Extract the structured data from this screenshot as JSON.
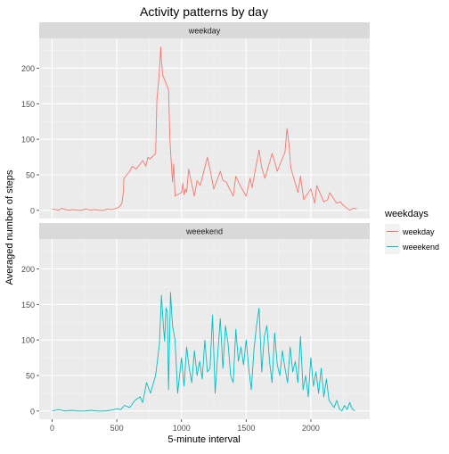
{
  "chart_data": {
    "type": "line",
    "title": "Activity patterns by day",
    "xlabel": "5-minute interval",
    "ylabel": "Averaged number of steps",
    "xlim": [
      -100,
      2455
    ],
    "ylim": [
      -11.5,
      242
    ],
    "x_ticks": [
      0,
      500,
      1000,
      1500,
      2000
    ],
    "y_ticks": [
      0,
      50,
      100,
      150,
      200
    ],
    "grid": true,
    "legend_position": "right",
    "legend_title": "weekdays",
    "panels": [
      {
        "strip_label": "weekday",
        "series_name": "weekday",
        "color": "#F8766D",
        "x": [
          0,
          25,
          50,
          75,
          100,
          130,
          160,
          200,
          230,
          260,
          300,
          330,
          360,
          400,
          430,
          460,
          500,
          520,
          540,
          550,
          555,
          600,
          620,
          650,
          700,
          725,
          740,
          755,
          800,
          810,
          825,
          830,
          835,
          840,
          845,
          855,
          900,
          910,
          920,
          930,
          940,
          950,
          1000,
          1010,
          1020,
          1030,
          1040,
          1055,
          1100,
          1120,
          1145,
          1200,
          1220,
          1250,
          1300,
          1320,
          1345,
          1400,
          1420,
          1450,
          1500,
          1530,
          1545,
          1600,
          1620,
          1645,
          1700,
          1715,
          1740,
          1800,
          1815,
          1830,
          1845,
          1900,
          1920,
          1945,
          2000,
          2030,
          2045,
          2100,
          2130,
          2145,
          2200,
          2230,
          2245,
          2300,
          2330,
          2355
        ],
        "y": [
          2,
          1,
          0,
          3,
          1,
          0,
          1,
          0,
          0,
          2,
          0,
          1,
          0,
          0,
          2,
          1,
          3,
          5,
          10,
          25,
          45,
          55,
          62,
          58,
          70,
          62,
          75,
          72,
          80,
          155,
          185,
          200,
          215,
          230,
          210,
          190,
          170,
          100,
          70,
          40,
          65,
          20,
          25,
          38,
          22,
          30,
          25,
          58,
          20,
          42,
          35,
          75,
          58,
          30,
          55,
          42,
          40,
          20,
          48,
          36,
          20,
          45,
          32,
          85,
          60,
          45,
          80,
          72,
          55,
          82,
          115,
          95,
          60,
          25,
          48,
          15,
          30,
          10,
          35,
          12,
          15,
          25,
          10,
          12,
          8,
          0,
          3,
          2
        ]
      },
      {
        "strip_label": "weeekend",
        "series_name": "weeekend",
        "color": "#00BFC4",
        "x": [
          0,
          50,
          100,
          150,
          200,
          250,
          300,
          350,
          400,
          450,
          500,
          530,
          560,
          600,
          640,
          680,
          700,
          730,
          760,
          800,
          830,
          845,
          860,
          870,
          880,
          890,
          900,
          915,
          930,
          950,
          970,
          1000,
          1020,
          1040,
          1060,
          1080,
          1100,
          1120,
          1140,
          1160,
          1180,
          1200,
          1220,
          1240,
          1260,
          1280,
          1300,
          1320,
          1340,
          1360,
          1380,
          1400,
          1420,
          1440,
          1460,
          1480,
          1500,
          1520,
          1540,
          1560,
          1580,
          1600,
          1620,
          1640,
          1660,
          1680,
          1700,
          1720,
          1740,
          1760,
          1780,
          1800,
          1820,
          1840,
          1860,
          1880,
          1900,
          1920,
          1940,
          1960,
          1980,
          2000,
          2020,
          2040,
          2060,
          2080,
          2100,
          2120,
          2140,
          2160,
          2180,
          2200,
          2220,
          2240,
          2260,
          2280,
          2300,
          2320,
          2340
        ],
        "y": [
          0,
          2,
          0,
          1,
          0,
          0,
          1,
          0,
          0,
          1,
          3,
          2,
          8,
          5,
          15,
          20,
          12,
          40,
          25,
          50,
          95,
          163,
          120,
          98,
          145,
          140,
          30,
          167,
          120,
          100,
          25,
          75,
          35,
          90,
          60,
          40,
          85,
          50,
          70,
          45,
          100,
          55,
          60,
          135,
          25,
          80,
          130,
          60,
          120,
          95,
          50,
          40,
          115,
          70,
          90,
          65,
          100,
          60,
          30,
          85,
          120,
          145,
          55,
          105,
          120,
          70,
          40,
          110,
          65,
          50,
          85,
          60,
          40,
          90,
          55,
          70,
          40,
          105,
          30,
          50,
          20,
          75,
          35,
          55,
          25,
          60,
          20,
          45,
          15,
          10,
          5,
          15,
          3,
          0,
          8,
          2,
          12,
          3,
          0
        ]
      }
    ]
  }
}
